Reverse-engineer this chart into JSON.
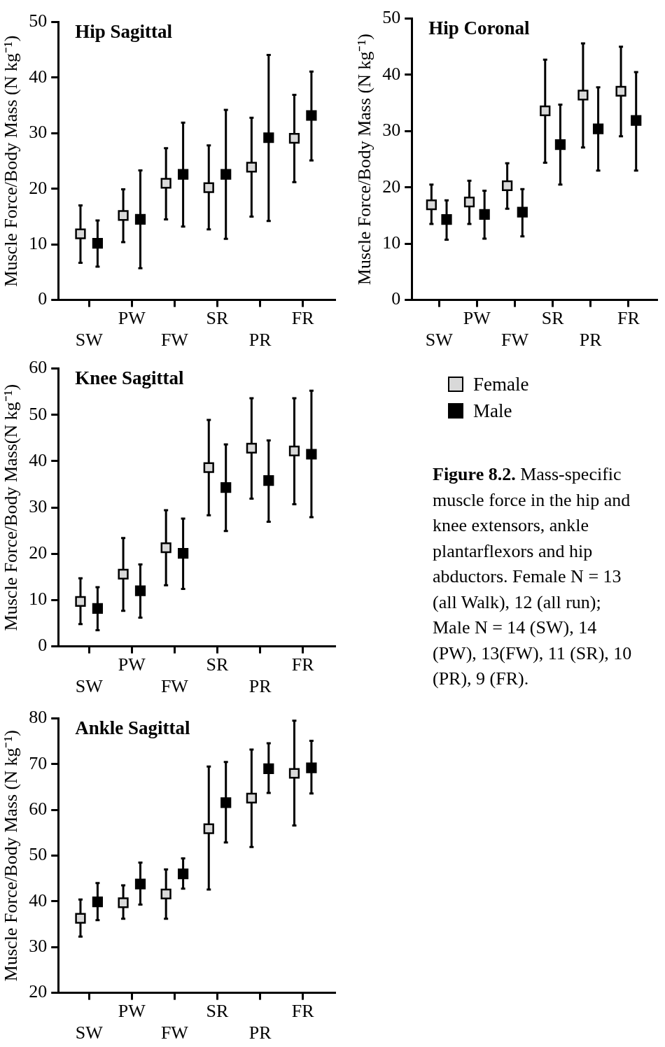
{
  "chart_data": [
    {
      "type": "scatter",
      "title": "Hip Sagittal",
      "ylabel": "Muscle Force/Body Mass (N kg⁻¹)",
      "categories": [
        "SW",
        "PW",
        "FW",
        "SR",
        "PR",
        "FR"
      ],
      "ylim": [
        0,
        50
      ],
      "yticks": [
        0,
        10,
        20,
        30,
        40,
        50
      ],
      "grid": false,
      "marker": "square",
      "legend": false,
      "series": [
        {
          "color": "#d9d9d9",
          "values": [
            11.9,
            15.2,
            21,
            20.2,
            23.9,
            29.1
          ],
          "errors": [
            [
              6.7,
              17
            ],
            [
              10.4,
              19.9
            ],
            [
              14.5,
              27.3
            ],
            [
              12.7,
              27.8
            ],
            [
              15,
              32.8
            ],
            [
              21.2,
              36.9
            ]
          ]
        },
        {
          "color": "#000000",
          "values": [
            10.2,
            14.5,
            22.6,
            22.6,
            29.2,
            33.2
          ],
          "errors": [
            [
              6,
              14.3
            ],
            [
              5.7,
              23.3
            ],
            [
              13.2,
              31.9
            ],
            [
              11,
              34.2
            ],
            [
              14.2,
              44.1
            ],
            [
              25.1,
              41.1
            ]
          ]
        }
      ]
    },
    {
      "type": "scatter",
      "title": "Hip Coronal",
      "ylabel": "Muscle Force/Body Mass (N kg⁻¹)",
      "categories": [
        "SW",
        "PW",
        "FW",
        "SR",
        "PR",
        "FR"
      ],
      "ylim": [
        0,
        50
      ],
      "yticks": [
        0,
        10,
        20,
        30,
        40,
        50
      ],
      "grid": false,
      "marker": "square",
      "legend": "bottom",
      "annotations": [
        "Figure 8.2. Mass-specific muscle force in the hip and knee extensors, ankle plantarflexors and hip abductors. Female N = 13 (all Walk), 12 (all run); Male N = 14 (SW), 14 (PW), 13(FW), 11 (SR), 10 (PR), 9 (FR)."
      ],
      "series": [
        {
          "name": "Female",
          "color": "#d9d9d9",
          "values": [
            16.9,
            17.4,
            20.3,
            33.6,
            36.4,
            37.1
          ],
          "errors": [
            [
              13.5,
              20.5
            ],
            [
              13.5,
              21.2
            ],
            [
              16.2,
              24.3
            ],
            [
              24.4,
              42.7
            ],
            [
              27.1,
              45.6
            ],
            [
              29.1,
              45
            ]
          ]
        },
        {
          "name": "Male",
          "color": "#000000",
          "values": [
            14.3,
            15.2,
            15.6,
            27.6,
            30.4,
            31.9
          ],
          "errors": [
            [
              10.7,
              17.7
            ],
            [
              10.9,
              19.4
            ],
            [
              11.3,
              19.7
            ],
            [
              20.5,
              34.7
            ],
            [
              23,
              37.8
            ],
            [
              23,
              40.5
            ]
          ]
        }
      ]
    },
    {
      "type": "scatter",
      "title": "Knee Sagittal",
      "ylabel": "Muscle Force/Body Mass(N kg⁻¹)",
      "categories": [
        "SW",
        "PW",
        "FW",
        "SR",
        "PR",
        "FR"
      ],
      "ylim": [
        0,
        60
      ],
      "yticks": [
        0,
        10,
        20,
        30,
        40,
        50,
        60
      ],
      "grid": false,
      "marker": "square",
      "legend": false,
      "series": [
        {
          "color": "#d9d9d9",
          "values": [
            9.7,
            15.6,
            21.3,
            38.6,
            42.8,
            42.2
          ],
          "errors": [
            [
              4.8,
              14.7
            ],
            [
              7.7,
              23.4
            ],
            [
              13.2,
              29.4
            ],
            [
              28.3,
              48.9
            ],
            [
              31.9,
              53.6
            ],
            [
              30.7,
              53.6
            ]
          ]
        },
        {
          "color": "#000000",
          "values": [
            8.2,
            12,
            20.1,
            34.3,
            35.8,
            41.5
          ],
          "errors": [
            [
              3.5,
              12.8
            ],
            [
              6.2,
              17.7
            ],
            [
              12.4,
              27.6
            ],
            [
              24.9,
              43.6
            ],
            [
              26.9,
              44.5
            ],
            [
              27.9,
              55.2
            ]
          ]
        }
      ]
    },
    {
      "type": "scatter",
      "title": "Ankle Sagittal",
      "ylabel": "Muscle Force/Body Mass (N kg⁻¹)",
      "categories": [
        "SW",
        "PW",
        "FW",
        "SR",
        "PR",
        "FR"
      ],
      "ylim": [
        20,
        80
      ],
      "yticks": [
        20,
        30,
        40,
        50,
        60,
        70,
        80
      ],
      "grid": false,
      "marker": "square",
      "legend": false,
      "series": [
        {
          "color": "#d9d9d9",
          "values": [
            36.3,
            39.7,
            41.6,
            55.9,
            62.6,
            68
          ],
          "errors": [
            [
              32.3,
              40.4
            ],
            [
              36.2,
              43.5
            ],
            [
              36.2,
              47
            ],
            [
              42.6,
              69.5
            ],
            [
              51.9,
              73.2
            ],
            [
              56.6,
              79.5
            ]
          ]
        },
        {
          "color": "#000000",
          "values": [
            39.9,
            43.8,
            46,
            61.6,
            69,
            69.2
          ],
          "errors": [
            [
              35.9,
              44
            ],
            [
              39.3,
              48.5
            ],
            [
              42.8,
              49.4
            ],
            [
              52.9,
              70.5
            ],
            [
              63.7,
              74.6
            ],
            [
              63.6,
              75.1
            ]
          ]
        }
      ]
    }
  ]
}
